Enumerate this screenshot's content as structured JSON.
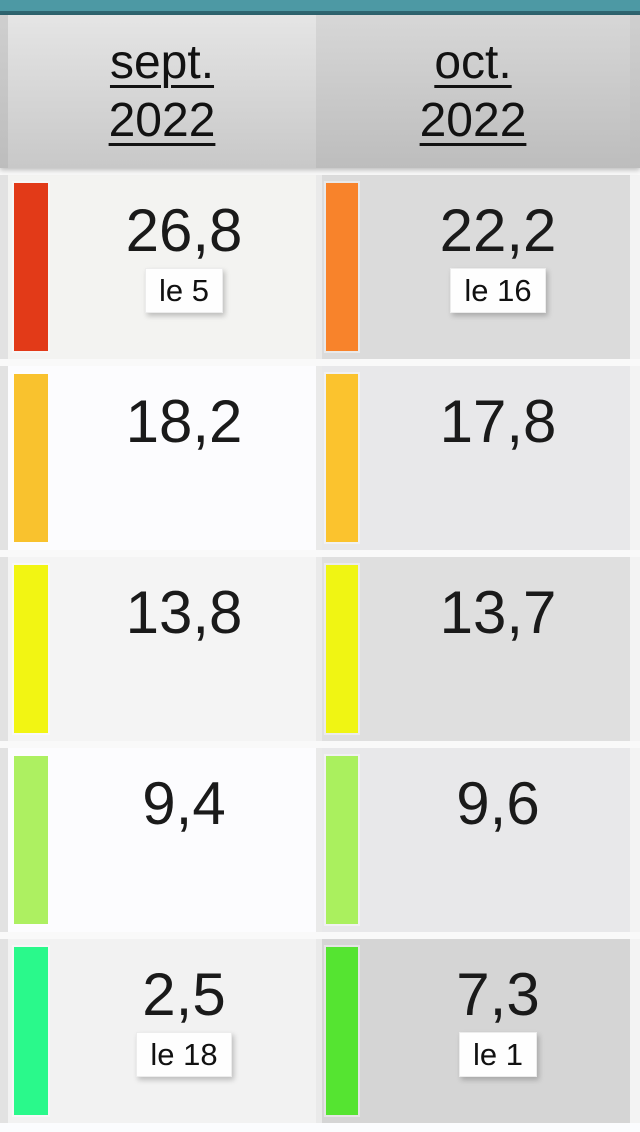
{
  "chrome": {
    "top_bar_color": "#4d99a4",
    "top_bar_edge_color": "#2e6570"
  },
  "table": {
    "columns": [
      {
        "month": "sept.",
        "year": "2022"
      },
      {
        "month": "oct.",
        "year": "2022"
      }
    ],
    "rows": [
      {
        "cells": [
          {
            "value": "26,8",
            "date": "le 5",
            "bar_color": "#e23a18"
          },
          {
            "value": "22,2",
            "date": "le 16",
            "bar_color": "#f8832b"
          }
        ]
      },
      {
        "cells": [
          {
            "value": "18,2",
            "bar_color": "#f9c22e"
          },
          {
            "value": "17,8",
            "bar_color": "#fbc32e"
          }
        ]
      },
      {
        "cells": [
          {
            "value": "13,8",
            "bar_color": "#f2f513"
          },
          {
            "value": "13,7",
            "bar_color": "#f0f513"
          }
        ]
      },
      {
        "cells": [
          {
            "value": "9,4",
            "bar_color": "#adf061"
          },
          {
            "value": "9,6",
            "bar_color": "#aaf05e"
          }
        ]
      },
      {
        "cells": [
          {
            "value": "2,5",
            "date": "le 18",
            "bar_color": "#2af98b"
          },
          {
            "value": "7,3",
            "date": "le 1",
            "bar_color": "#55e431"
          }
        ]
      }
    ]
  }
}
